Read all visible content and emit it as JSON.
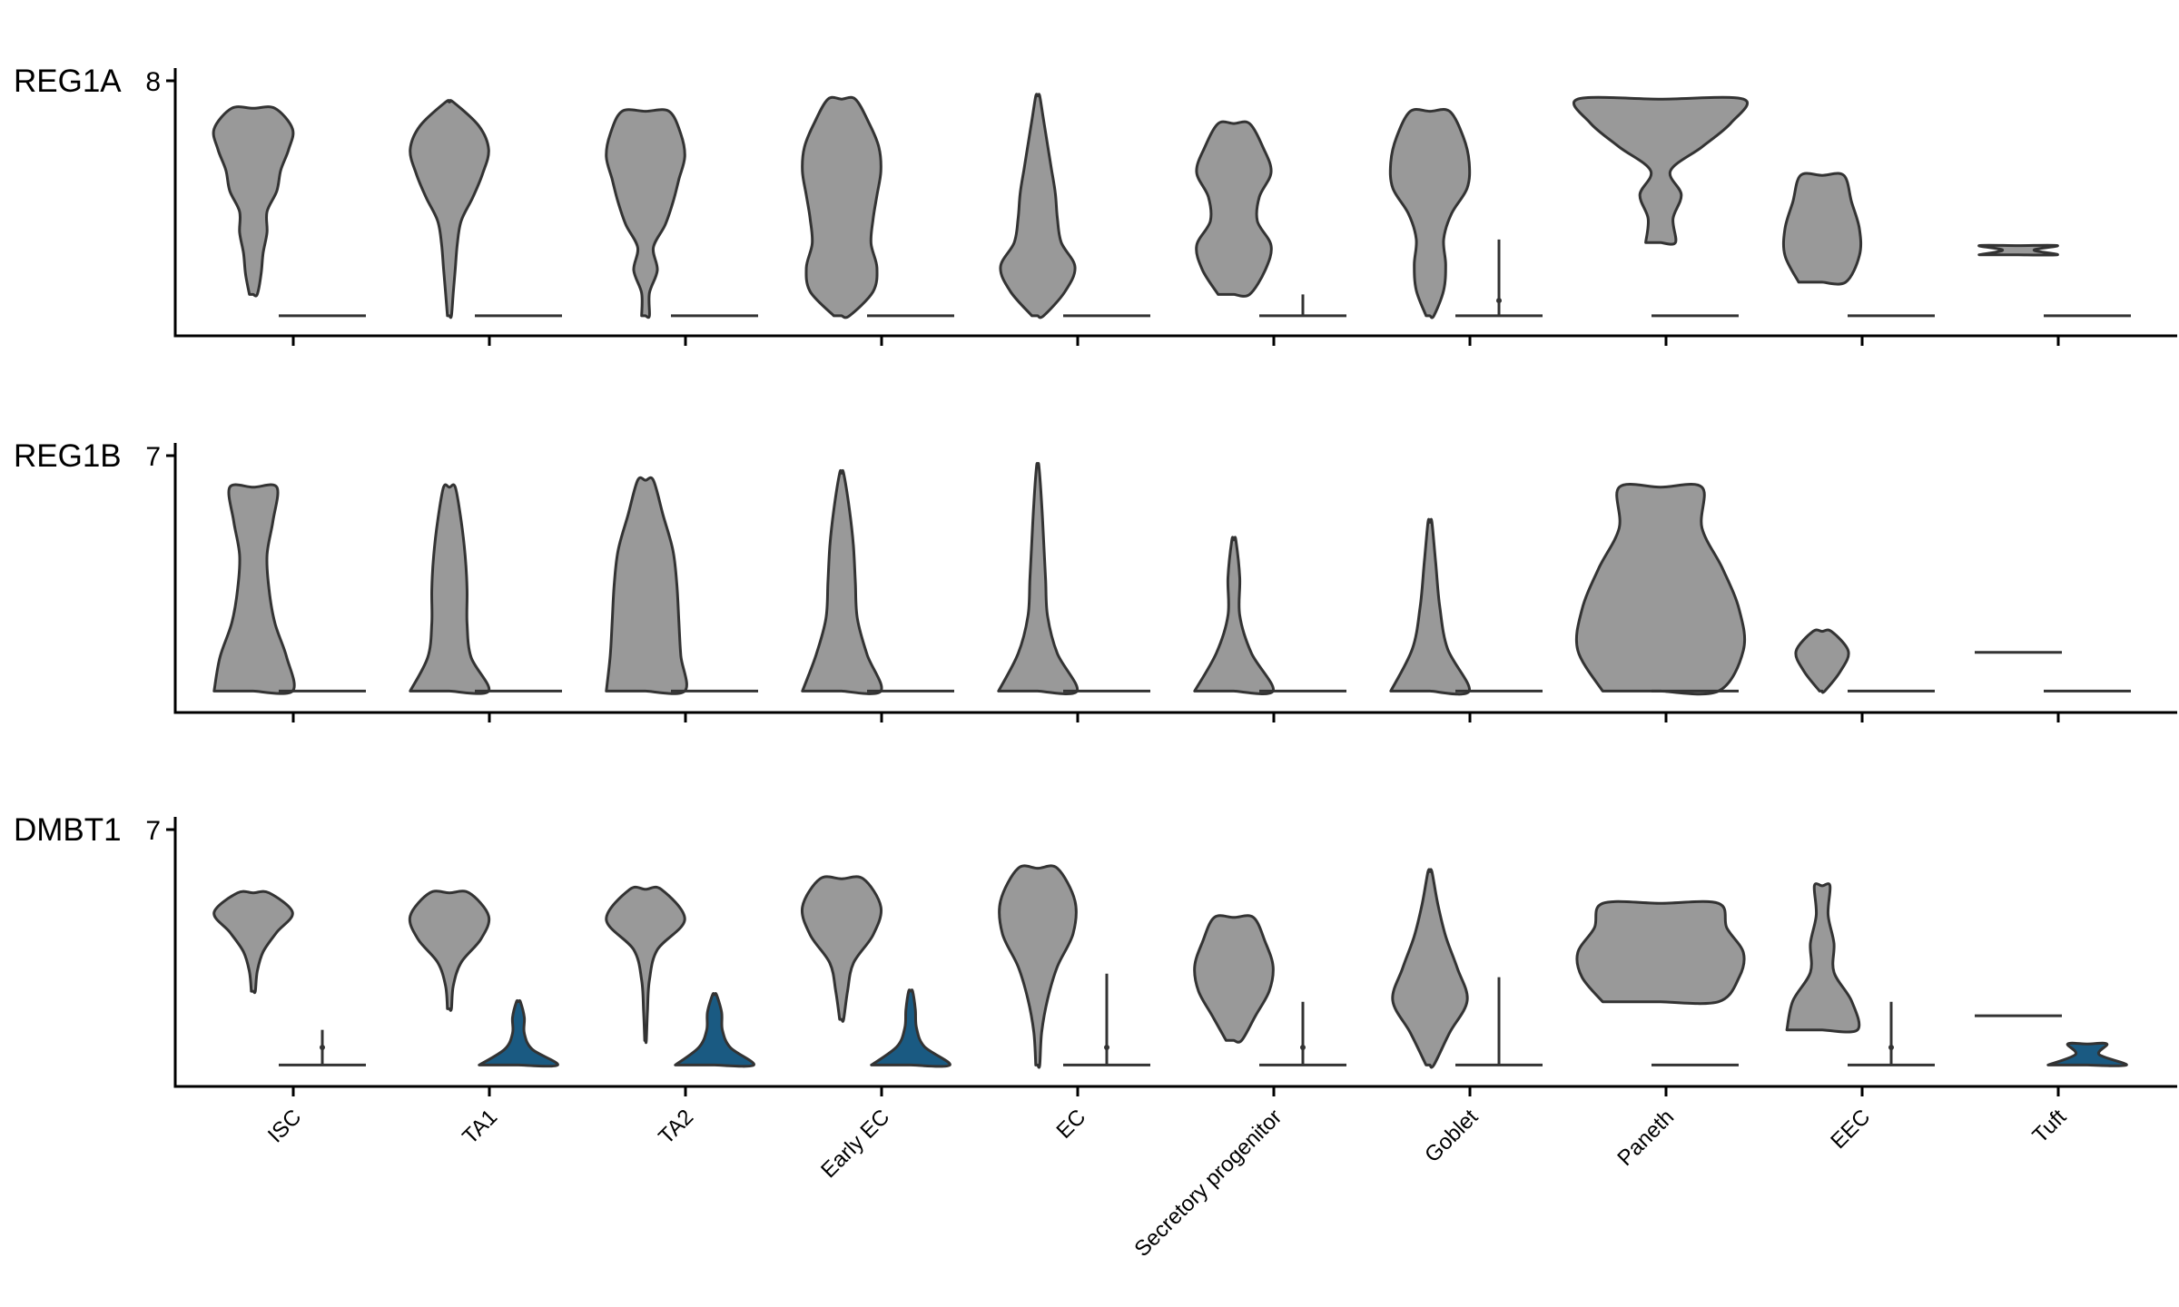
{
  "chart_data": {
    "type": "violin",
    "title": "",
    "xlabel": "",
    "categories": [
      "ISC",
      "TA1",
      "TA2",
      "Early EC",
      "EC",
      "Secretory progenitor",
      "Goblet",
      "Paneth",
      "EEC",
      "Tuft"
    ],
    "split_groups": [
      "left",
      "right"
    ],
    "colors": {
      "left": "#999999",
      "right_mostly_zero": "#999999",
      "right_highlight": "#1A5A82",
      "outline": "#333333"
    },
    "panels": [
      {
        "gene": "REG1A",
        "ylim": [
          0,
          8
        ],
        "ytick": "8",
        "violins": [
          {
            "cat": "ISC",
            "side": "left",
            "color": "gray",
            "min": 1.0,
            "max": 7.1,
            "w": [
              0.1,
              0.2,
              0.25,
              0.35,
              0.35,
              0.6,
              0.7,
              0.9,
              1.0,
              0.55
            ],
            "scale": 0.9
          },
          {
            "cat": "ISC",
            "side": "right",
            "color": "gray",
            "flat": 0.3
          },
          {
            "cat": "TA1",
            "side": "left",
            "color": "gray",
            "min": 0.3,
            "max": 7.3,
            "w": [
              0.05,
              0.1,
              0.15,
              0.2,
              0.3,
              0.6,
              0.85,
              1.0,
              0.75,
              0.1
            ],
            "scale": 0.9
          },
          {
            "cat": "TA1",
            "side": "right",
            "color": "gray",
            "flat": 0.3
          },
          {
            "cat": "TA2",
            "side": "left",
            "color": "gray",
            "min": 0.3,
            "max": 7.0,
            "w": [
              0.1,
              0.1,
              0.3,
              0.2,
              0.5,
              0.7,
              0.85,
              1.0,
              0.9,
              0.6
            ],
            "scale": 0.9
          },
          {
            "cat": "TA2",
            "side": "right",
            "color": "gray",
            "flat": 0.3
          },
          {
            "cat": "Early EC",
            "side": "left",
            "color": "gray",
            "min": 0.3,
            "max": 7.4,
            "w": [
              0.2,
              0.8,
              0.9,
              0.75,
              0.8,
              0.9,
              1.0,
              0.95,
              0.7,
              0.35
            ],
            "scale": 0.9
          },
          {
            "cat": "Early EC",
            "side": "right",
            "color": "gray",
            "flat": 0.3
          },
          {
            "cat": "EC",
            "side": "left",
            "color": "gray",
            "min": 0.3,
            "max": 7.5,
            "w": [
              0.15,
              0.7,
              0.95,
              0.6,
              0.5,
              0.45,
              0.35,
              0.25,
              0.15,
              0.05
            ],
            "scale": 0.9
          },
          {
            "cat": "EC",
            "side": "right",
            "color": "gray",
            "flat": 0.3
          },
          {
            "cat": "Secretory progenitor",
            "side": "left",
            "color": "gray",
            "min": 1.0,
            "max": 6.6,
            "w": [
              0.4,
              0.8,
              0.95,
              0.6,
              0.65,
              0.95,
              0.75,
              0.4
            ],
            "scale": 0.9
          },
          {
            "cat": "Secretory progenitor",
            "side": "right",
            "color": "gray",
            "flat": 0.3,
            "whisker": [
              0.3,
              1.0
            ]
          },
          {
            "cat": "Goblet",
            "side": "left",
            "color": "gray",
            "min": 0.3,
            "max": 7.0,
            "w": [
              0.1,
              0.35,
              0.4,
              0.35,
              0.55,
              0.95,
              1.0,
              0.85,
              0.5
            ],
            "scale": 0.9
          },
          {
            "cat": "Goblet",
            "side": "right",
            "color": "gray",
            "flat": 0.3,
            "whisker": [
              0.3,
              2.8
            ],
            "point": 0.8
          },
          {
            "cat": "Paneth",
            "side": "left",
            "color": "gray",
            "min": 2.7,
            "max": 7.4,
            "w": [
              0.18,
              0.15,
              0.25,
              0.12,
              0.5,
              0.85,
              1.0
            ],
            "scale": 0.95
          },
          {
            "cat": "Paneth",
            "side": "right",
            "color": "gray",
            "flat": 0.3
          },
          {
            "cat": "EEC",
            "side": "left",
            "color": "gray",
            "min": 1.4,
            "max": 4.9,
            "w": [
              0.6,
              0.95,
              0.95,
              0.75,
              0.55
            ],
            "scale": 0.9
          },
          {
            "cat": "EEC",
            "side": "right",
            "color": "gray",
            "flat": 0.3
          },
          {
            "cat": "Tuft",
            "side": "left",
            "color": "gray",
            "min": 2.3,
            "max": 2.6,
            "w": [
              1.0,
              0.4,
              1.0
            ],
            "scale": 0.9
          },
          {
            "cat": "Tuft",
            "side": "right",
            "color": "gray",
            "flat": 0.3
          }
        ]
      },
      {
        "gene": "REG1B",
        "ylim": [
          0,
          7
        ],
        "ytick": "7",
        "violins": [
          {
            "cat": "ISC",
            "side": "left",
            "color": "gray",
            "min": 0.3,
            "max": 6.1,
            "w": [
              1.0,
              0.85,
              0.55,
              0.4,
              0.35,
              0.5,
              0.6
            ],
            "scale": 0.9
          },
          {
            "cat": "ISC",
            "side": "right",
            "color": "gray",
            "flat": 0.3
          },
          {
            "cat": "TA1",
            "side": "left",
            "color": "gray",
            "min": 0.3,
            "max": 6.1,
            "w": [
              1.0,
              0.55,
              0.45,
              0.45,
              0.4,
              0.3,
              0.15
            ],
            "scale": 0.9
          },
          {
            "cat": "TA1",
            "side": "right",
            "color": "gray",
            "flat": 0.3
          },
          {
            "cat": "TA2",
            "side": "left",
            "color": "gray",
            "min": 0.3,
            "max": 6.3,
            "w": [
              1.0,
              0.9,
              0.85,
              0.8,
              0.7,
              0.45,
              0.2
            ],
            "scale": 0.9
          },
          {
            "cat": "TA2",
            "side": "right",
            "color": "gray",
            "flat": 0.3
          },
          {
            "cat": "Early EC",
            "side": "left",
            "color": "gray",
            "min": 0.3,
            "max": 6.5,
            "w": [
              1.0,
              0.65,
              0.4,
              0.35,
              0.3,
              0.2,
              0.05
            ],
            "scale": 0.9
          },
          {
            "cat": "Early EC",
            "side": "right",
            "color": "gray",
            "flat": 0.3
          },
          {
            "cat": "EC",
            "side": "left",
            "color": "gray",
            "min": 0.3,
            "max": 6.7,
            "w": [
              1.0,
              0.5,
              0.25,
              0.2,
              0.15,
              0.1,
              0.03
            ],
            "scale": 0.9
          },
          {
            "cat": "EC",
            "side": "right",
            "color": "gray",
            "flat": 0.3
          },
          {
            "cat": "Secretory progenitor",
            "side": "left",
            "color": "gray",
            "min": 0.3,
            "max": 4.6,
            "w": [
              1.0,
              0.45,
              0.15,
              0.15,
              0.05
            ],
            "scale": 0.9
          },
          {
            "cat": "Secretory progenitor",
            "side": "right",
            "color": "gray",
            "flat": 0.3
          },
          {
            "cat": "Goblet",
            "side": "left",
            "color": "gray",
            "min": 0.3,
            "max": 5.1,
            "w": [
              1.0,
              0.45,
              0.25,
              0.15,
              0.05
            ],
            "scale": 0.9
          },
          {
            "cat": "Goblet",
            "side": "right",
            "color": "gray",
            "flat": 0.3
          },
          {
            "cat": "Paneth",
            "side": "left",
            "color": "gray",
            "min": 0.3,
            "max": 6.1,
            "w": [
              0.7,
              1.0,
              0.95,
              0.75,
              0.5,
              0.5
            ],
            "scale": 0.95
          },
          {
            "cat": "Paneth",
            "side": "right",
            "color": "gray",
            "flat": 0.3
          },
          {
            "cat": "EEC",
            "side": "left",
            "color": "gray",
            "min": 0.3,
            "max": 2.0,
            "w": [
              0.1,
              0.7,
              1.0,
              0.35
            ],
            "scale": 0.6
          },
          {
            "cat": "EEC",
            "side": "right",
            "color": "gray",
            "flat": 0.3
          },
          {
            "cat": "Tuft",
            "side": "left",
            "color": "gray",
            "flat": 1.4
          },
          {
            "cat": "Tuft",
            "side": "right",
            "color": "gray",
            "flat": 0.3
          }
        ]
      },
      {
        "gene": "DMBT1",
        "ylim": [
          0,
          7
        ],
        "ytick": "7",
        "violins": [
          {
            "cat": "ISC",
            "side": "left",
            "color": "gray",
            "min": 2.4,
            "max": 5.2,
            "w": [
              0.05,
              0.1,
              0.25,
              0.6,
              1.0,
              0.4
            ],
            "scale": 0.9
          },
          {
            "cat": "ISC",
            "side": "right",
            "color": "gray",
            "flat": 0.3,
            "whisker": [
              0.3,
              1.3
            ],
            "point": 0.8
          },
          {
            "cat": "TA1",
            "side": "left",
            "color": "gray",
            "min": 1.9,
            "max": 5.2,
            "w": [
              0.05,
              0.1,
              0.3,
              0.8,
              1.0,
              0.5
            ],
            "scale": 0.9
          },
          {
            "cat": "TA1",
            "side": "right",
            "color": "blue",
            "min": 0.3,
            "max": 2.1,
            "w": [
              1.0,
              0.35,
              0.15,
              0.15,
              0.05
            ],
            "scale": 0.9
          },
          {
            "cat": "TA2",
            "side": "left",
            "color": "gray",
            "min": 1.0,
            "max": 5.3,
            "w": [
              0.02,
              0.05,
              0.1,
              0.3,
              1.0,
              0.4
            ],
            "scale": 0.9
          },
          {
            "cat": "TA2",
            "side": "right",
            "color": "blue",
            "min": 0.3,
            "max": 2.3,
            "w": [
              1.0,
              0.4,
              0.2,
              0.18,
              0.05
            ],
            "scale": 0.9
          },
          {
            "cat": "Early EC",
            "side": "left",
            "color": "gray",
            "min": 1.6,
            "max": 5.6,
            "w": [
              0.05,
              0.15,
              0.3,
              0.8,
              1.0,
              0.55
            ],
            "scale": 0.9
          },
          {
            "cat": "Early EC",
            "side": "right",
            "color": "blue",
            "min": 0.3,
            "max": 2.4,
            "w": [
              1.0,
              0.35,
              0.15,
              0.12,
              0.05
            ],
            "scale": 0.9
          },
          {
            "cat": "EC",
            "side": "left",
            "color": "gray",
            "min": 0.3,
            "max": 5.9,
            "w": [
              0.05,
              0.1,
              0.25,
              0.5,
              0.9,
              0.95,
              0.5
            ],
            "scale": 0.9
          },
          {
            "cat": "EC",
            "side": "right",
            "color": "gray",
            "flat": 0.3,
            "whisker": [
              0.3,
              2.9
            ],
            "point": 0.8
          },
          {
            "cat": "Secretory progenitor",
            "side": "left",
            "color": "gray",
            "min": 1.0,
            "max": 4.5,
            "w": [
              0.2,
              0.55,
              0.9,
              1.0,
              0.8,
              0.5
            ],
            "scale": 0.9
          },
          {
            "cat": "Secretory progenitor",
            "side": "right",
            "color": "gray",
            "flat": 0.3,
            "whisker": [
              0.3,
              2.1
            ],
            "point": 0.8
          },
          {
            "cat": "Goblet",
            "side": "left",
            "color": "gray",
            "min": 0.3,
            "max": 5.8,
            "w": [
              0.1,
              0.5,
              0.95,
              0.7,
              0.4,
              0.2,
              0.05
            ],
            "scale": 0.9
          },
          {
            "cat": "Goblet",
            "side": "right",
            "color": "gray",
            "flat": 0.3,
            "whisker": [
              0.3,
              2.8
            ]
          },
          {
            "cat": "Paneth",
            "side": "left",
            "color": "gray",
            "min": 2.1,
            "max": 4.9,
            "w": [
              0.7,
              0.95,
              1.0,
              0.8,
              0.7
            ],
            "scale": 0.95
          },
          {
            "cat": "Paneth",
            "side": "right",
            "color": "gray",
            "flat": 0.3
          },
          {
            "cat": "EEC",
            "side": "left",
            "color": "gray",
            "min": 1.3,
            "max": 5.4,
            "w": [
              0.9,
              0.75,
              0.3,
              0.3,
              0.15,
              0.2
            ],
            "scale": 0.9
          },
          {
            "cat": "EEC",
            "side": "right",
            "color": "gray",
            "flat": 0.3,
            "whisker": [
              0.3,
              2.1
            ],
            "point": 0.8
          },
          {
            "cat": "Tuft",
            "side": "left",
            "color": "gray",
            "flat": 1.7
          },
          {
            "cat": "Tuft",
            "side": "right",
            "color": "blue",
            "min": 0.3,
            "max": 0.9,
            "w": [
              1.0,
              0.3,
              0.5
            ],
            "scale": 0.9
          }
        ]
      }
    ]
  }
}
